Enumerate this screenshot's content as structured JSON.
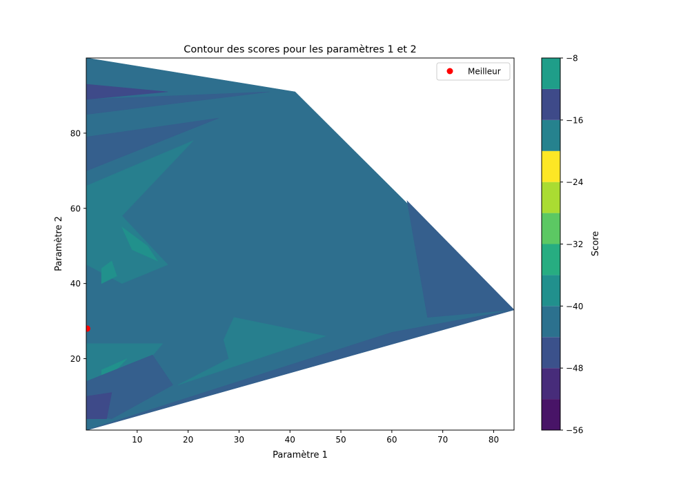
{
  "chart_data": {
    "type": "contour",
    "title": "Contour des scores pour les paramètres 1 et 2",
    "xlabel": "Paramètre 1",
    "ylabel": "Paramètre 2",
    "xlim": [
      0,
      84
    ],
    "ylim": [
      1,
      100
    ],
    "x_ticks": [
      10,
      20,
      30,
      40,
      50,
      60,
      70,
      80
    ],
    "y_ticks": [
      20,
      40,
      60,
      80
    ],
    "grid": false,
    "legend": {
      "placement": "top-right",
      "entries": [
        {
          "label": "Meilleur",
          "color": "#ff0000",
          "marker": "circle"
        }
      ]
    },
    "colorbar": {
      "label": "Score",
      "colormap": "viridis",
      "range": [
        -56,
        -8
      ],
      "ticks": [
        -56,
        -48,
        -40,
        -32,
        -24,
        -16,
        -8
      ],
      "tick_labels": [
        "−56",
        "−48",
        "−40",
        "−32",
        "−24",
        "−16",
        "−8"
      ],
      "levels": [
        -56,
        -52,
        -48,
        -44,
        -40,
        -36,
        -32,
        -28,
        -24,
        -20,
        -16,
        -12,
        -8
      ],
      "level_colors": [
        "#481467",
        "#472c7a",
        "#3b518b",
        "#2c718e",
        "#21908d",
        "#27ad81",
        "#5cc863",
        "#aadc32",
        "#fde725",
        "#26828e",
        "#3e4a89",
        "#1f9e89"
      ]
    },
    "best_point": {
      "label": "Meilleur",
      "x": 0.2,
      "y": 28,
      "color": "#ff0000"
    },
    "domain_hull": [
      [
        0.1,
        100
      ],
      [
        41,
        91
      ],
      [
        84,
        33
      ],
      [
        0.1,
        1
      ]
    ],
    "regions": [
      {
        "level": -40,
        "color": "#2e6f8e",
        "points": [
          [
            0.1,
            100
          ],
          [
            41,
            91
          ],
          [
            84,
            33
          ],
          [
            0.1,
            1
          ]
        ]
      },
      {
        "level": -44,
        "color": "#355f8d",
        "points": [
          [
            63,
            62
          ],
          [
            84,
            33
          ],
          [
            67,
            31
          ]
        ]
      },
      {
        "level": -44,
        "color": "#355f8d",
        "points": [
          [
            84,
            33
          ],
          [
            0.1,
            1
          ],
          [
            60,
            27
          ]
        ]
      },
      {
        "level": -44,
        "color": "#355f8d",
        "points": [
          [
            0.1,
            89
          ],
          [
            36,
            91
          ],
          [
            0.1,
            85
          ]
        ]
      },
      {
        "level": -48,
        "color": "#3e4a89",
        "points": [
          [
            0.1,
            93
          ],
          [
            16,
            91
          ],
          [
            0.1,
            89
          ]
        ]
      },
      {
        "level": -44,
        "color": "#355f8d",
        "points": [
          [
            0.1,
            79
          ],
          [
            26,
            84
          ],
          [
            0.1,
            70
          ]
        ]
      },
      {
        "level": -36,
        "color": "#277f8e",
        "points": [
          [
            0.1,
            66
          ],
          [
            21,
            78
          ],
          [
            7,
            58
          ],
          [
            16,
            45
          ],
          [
            7,
            40
          ],
          [
            0.1,
            45
          ]
        ]
      },
      {
        "level": -32,
        "color": "#21918c",
        "points": [
          [
            7,
            55
          ],
          [
            12,
            50
          ],
          [
            14,
            46
          ],
          [
            9,
            49
          ]
        ]
      },
      {
        "level": -32,
        "color": "#21918c",
        "points": [
          [
            3,
            40
          ],
          [
            6,
            42
          ],
          [
            5,
            46
          ],
          [
            3,
            44
          ]
        ]
      },
      {
        "level": -36,
        "color": "#277f8e",
        "points": [
          [
            27,
            25
          ],
          [
            29,
            31
          ],
          [
            47,
            26
          ],
          [
            18,
            13
          ],
          [
            28,
            20
          ]
        ]
      },
      {
        "level": -36,
        "color": "#277f8e",
        "points": [
          [
            0.1,
            24
          ],
          [
            15,
            24
          ],
          [
            10,
            16
          ],
          [
            0.1,
            8
          ]
        ]
      },
      {
        "level": -32,
        "color": "#21918c",
        "points": [
          [
            3,
            17
          ],
          [
            8,
            20
          ],
          [
            3,
            13
          ]
        ]
      },
      {
        "level": -44,
        "color": "#355f8d",
        "points": [
          [
            0.1,
            14
          ],
          [
            13,
            21
          ],
          [
            17,
            13
          ],
          [
            5,
            4
          ],
          [
            0.1,
            5
          ]
        ]
      },
      {
        "level": -48,
        "color": "#3e4a89",
        "points": [
          [
            0.1,
            10
          ],
          [
            5,
            11
          ],
          [
            4,
            4
          ],
          [
            0.1,
            4
          ]
        ]
      }
    ]
  }
}
